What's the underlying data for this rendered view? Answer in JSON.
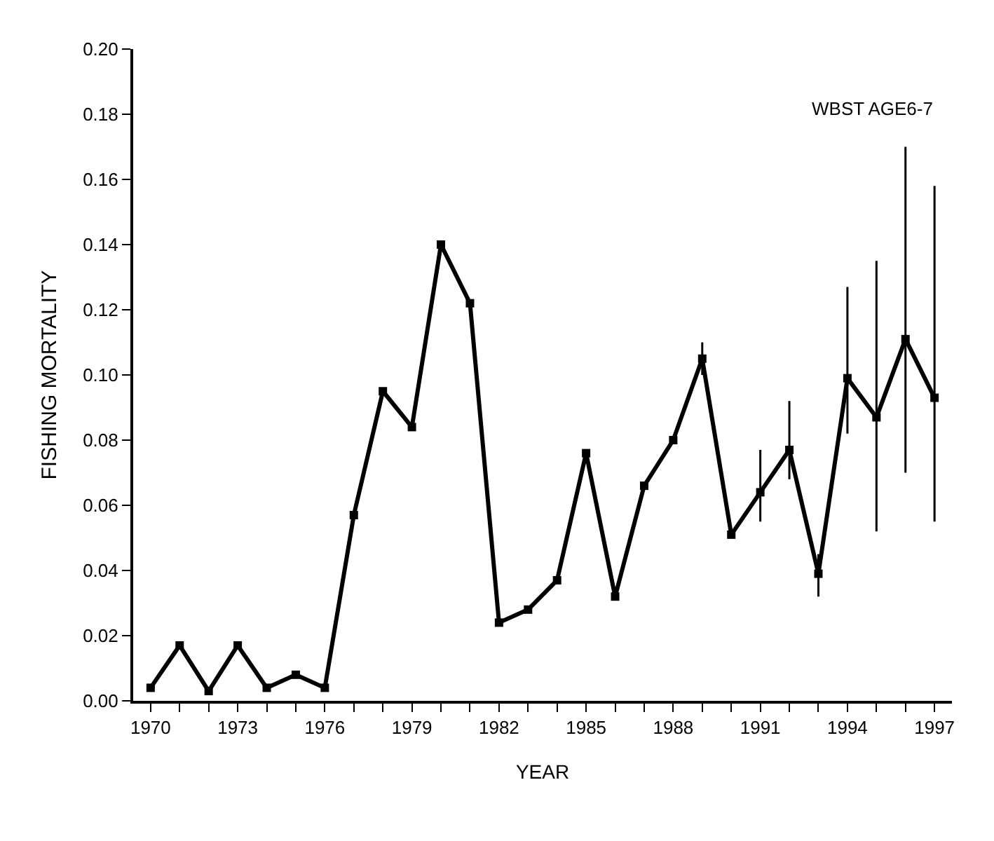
{
  "chart_data": {
    "type": "line",
    "xlabel": "YEAR",
    "ylabel": "FISHING MORTALITY",
    "annotations": [
      "WBST AGE6-7"
    ],
    "x": [
      1970,
      1971,
      1972,
      1973,
      1974,
      1975,
      1976,
      1977,
      1978,
      1979,
      1980,
      1981,
      1982,
      1983,
      1984,
      1985,
      1986,
      1987,
      1988,
      1989,
      1990,
      1991,
      1992,
      1993,
      1994,
      1995,
      1996,
      1997
    ],
    "values": [
      0.004,
      0.017,
      0.003,
      0.017,
      0.004,
      0.008,
      0.004,
      0.057,
      0.095,
      0.084,
      0.14,
      0.122,
      0.024,
      0.028,
      0.037,
      0.076,
      0.032,
      0.066,
      0.08,
      0.105,
      0.051,
      0.064,
      0.077,
      0.039,
      0.099,
      0.087,
      0.111,
      0.093
    ],
    "errors": [
      null,
      null,
      null,
      null,
      null,
      null,
      null,
      null,
      null,
      null,
      null,
      null,
      null,
      null,
      null,
      null,
      null,
      null,
      null,
      [
        0.1,
        0.11
      ],
      null,
      [
        0.055,
        0.077
      ],
      [
        0.068,
        0.092
      ],
      [
        0.032,
        0.045
      ],
      [
        0.082,
        0.127
      ],
      [
        0.052,
        0.135
      ],
      [
        0.07,
        0.17
      ],
      [
        0.055,
        0.158
      ]
    ],
    "color": "#000000",
    "marker": "square",
    "line_style": "solid",
    "xlim": [
      1969.4,
      1997.6
    ],
    "xticks": [
      1970,
      {
        "value": 1971,
        "label": null
      },
      {
        "value": 1972,
        "label": null
      },
      1973,
      {
        "value": 1974,
        "label": null
      },
      {
        "value": 1975,
        "label": null
      },
      1976,
      {
        "value": 1977,
        "label": null
      },
      {
        "value": 1978,
        "label": null
      },
      1979,
      {
        "value": 1980,
        "label": null
      },
      {
        "value": 1981,
        "label": null
      },
      1982,
      {
        "value": 1983,
        "label": null
      },
      {
        "value": 1984,
        "label": null
      },
      1985,
      {
        "value": 1986,
        "label": null
      },
      {
        "value": 1987,
        "label": null
      },
      1988,
      {
        "value": 1989,
        "label": null
      },
      {
        "value": 1990,
        "label": null
      },
      1991,
      {
        "value": 1992,
        "label": null
      },
      {
        "value": 1993,
        "label": null
      },
      1994,
      {
        "value": 1995,
        "label": null
      },
      {
        "value": 1996,
        "label": null
      },
      1997
    ],
    "ylim": [
      0,
      0.2
    ],
    "yticks": [
      {
        "value": 0,
        "label": "0.00"
      },
      {
        "value": 0.02,
        "label": "0.02"
      },
      {
        "value": 0.04,
        "label": "0.04"
      },
      {
        "value": 0.06,
        "label": "0.06"
      },
      {
        "value": 0.08,
        "label": "0.08"
      },
      {
        "value": 0.1,
        "label": "0.10"
      },
      {
        "value": 0.12,
        "label": "0.12"
      },
      {
        "value": 0.14,
        "label": "0.14"
      },
      {
        "value": 0.16,
        "label": "0.16"
      },
      {
        "value": 0.18,
        "label": "0.18"
      },
      {
        "value": 0.2,
        "label": "0.20"
      }
    ]
  }
}
